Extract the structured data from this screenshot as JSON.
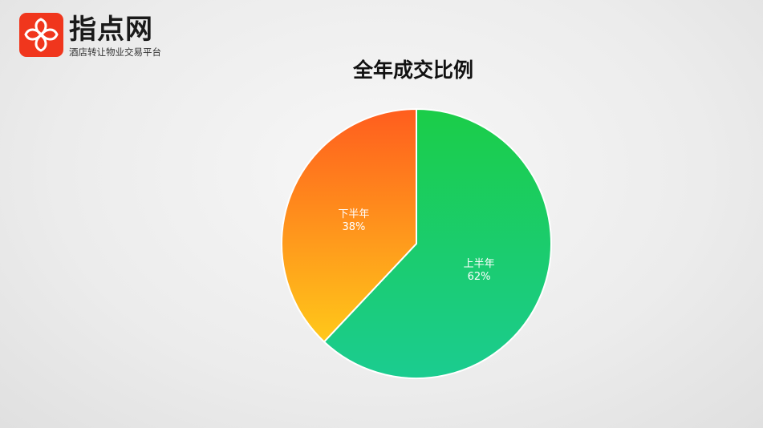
{
  "logo": {
    "name": "指点网",
    "tagline": "酒店转让物业交易平台",
    "brand_color": "#f0361d"
  },
  "chart_data": {
    "type": "pie",
    "title": "全年成交比例",
    "categories": [
      "上半年",
      "下半年"
    ],
    "values": [
      62,
      38
    ],
    "labels": [
      "62%",
      "38%"
    ],
    "colors": [
      [
        "#1bcd48",
        "#1bcc90"
      ],
      [
        "#ff5d1e",
        "#ffc81a"
      ]
    ],
    "start": "top",
    "direction": "clockwise",
    "legend": "none"
  }
}
